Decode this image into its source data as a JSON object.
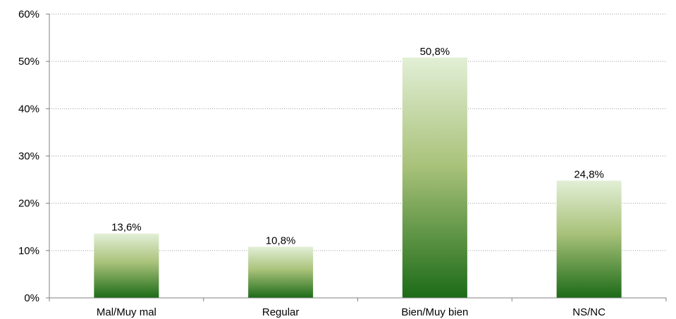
{
  "chart_data": {
    "type": "bar",
    "categories": [
      "Mal/Muy mal",
      "Regular",
      "Bien/Muy bien",
      "NS/NC"
    ],
    "values": [
      13.6,
      10.8,
      50.8,
      24.8
    ],
    "data_labels": [
      "13,6%",
      "10,8%",
      "50,8%",
      "24,8%"
    ],
    "yticks": [
      0,
      10,
      20,
      30,
      40,
      50,
      60
    ],
    "ytick_labels": [
      "0%",
      "10%",
      "20%",
      "30%",
      "40%",
      "50%",
      "60%"
    ],
    "ylim": [
      0,
      60
    ],
    "grid": true,
    "legend": "none",
    "colors": {
      "bar_top": "#e2efd6",
      "bar_mid": "#a9c27a",
      "bar_bottom": "#1c6b17"
    }
  }
}
